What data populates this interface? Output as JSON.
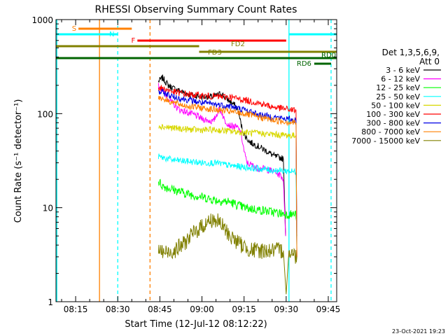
{
  "chart_data": {
    "type": "line",
    "title": "RHESSI Observing Summary Count Rates",
    "xlabel": "Start Time (12-Jul-12 08:12:22)",
    "ylabel": "Count Rate (s⁻¹ detector⁻¹)",
    "y_scale": "log",
    "ylim": [
      1,
      1000
    ],
    "xlim_minutes": [
      8.0,
      108.0
    ],
    "x_ticks": [
      {
        "label": "08:15",
        "t": 15
      },
      {
        "label": "08:30",
        "t": 30
      },
      {
        "label": "08:45",
        "t": 45
      },
      {
        "label": "09:00",
        "t": 60
      },
      {
        "label": "09:15",
        "t": 75
      },
      {
        "label": "09:30",
        "t": 90
      },
      {
        "label": "09:45",
        "t": 105
      }
    ],
    "y_ticks": [
      {
        "label": "1",
        "v": 1
      },
      {
        "label": "10",
        "v": 10
      },
      {
        "label": "100",
        "v": 100
      },
      {
        "label": "1000",
        "v": 1000
      }
    ],
    "legend": {
      "placement": "right",
      "header": [
        "Det 1,3,5,6,9,",
        "Att 0"
      ],
      "entries": [
        {
          "label": "3 - 6 keV",
          "color": "#000000"
        },
        {
          "label": "6 - 12 keV",
          "color": "#ff00ff"
        },
        {
          "label": "12 - 25 keV",
          "color": "#00ff00"
        },
        {
          "label": "25 - 50 keV",
          "color": "#00ffff"
        },
        {
          "label": "50 - 100 keV",
          "color": "#d8d800"
        },
        {
          "label": "100 - 300 keV",
          "color": "#ff0000"
        },
        {
          "label": "300 - 800 keV",
          "color": "#0000e6"
        },
        {
          "label": "800 - 7000 keV",
          "color": "#ff8000"
        },
        {
          "label": "7000 - 15000 keV",
          "color": "#808000"
        }
      ]
    },
    "series": [
      {
        "name": "3 - 6 keV",
        "color": "#000000",
        "points": [
          [
            44.5,
            220
          ],
          [
            46,
            240
          ],
          [
            48,
            200
          ],
          [
            50,
            185
          ],
          [
            52,
            175
          ],
          [
            54,
            165
          ],
          [
            56,
            158
          ],
          [
            58,
            155
          ],
          [
            60,
            150
          ],
          [
            62,
            152
          ],
          [
            64,
            150
          ],
          [
            66,
            160
          ],
          [
            67,
            165
          ],
          [
            68,
            150
          ],
          [
            70,
            135
          ],
          [
            72,
            120
          ],
          [
            73,
            105
          ],
          [
            74,
            75
          ],
          [
            75,
            60
          ],
          [
            77,
            50
          ],
          [
            80,
            45
          ],
          [
            83,
            40
          ],
          [
            86,
            35
          ],
          [
            88,
            34
          ],
          [
            89,
            33
          ],
          [
            89.8,
            5
          ]
        ]
      },
      {
        "name": "6 - 12 keV",
        "color": "#ff00ff",
        "points": [
          [
            44.5,
            200
          ],
          [
            46,
            175
          ],
          [
            48,
            145
          ],
          [
            50,
            125
          ],
          [
            52,
            110
          ],
          [
            54,
            105
          ],
          [
            56,
            100
          ],
          [
            58,
            95
          ],
          [
            60,
            88
          ],
          [
            62,
            85
          ],
          [
            64,
            82
          ],
          [
            65,
            95
          ],
          [
            66,
            110
          ],
          [
            67,
            105
          ],
          [
            68,
            85
          ],
          [
            70,
            75
          ],
          [
            72,
            72
          ],
          [
            73,
            70
          ],
          [
            74,
            60
          ],
          [
            75,
            40
          ],
          [
            76,
            30
          ],
          [
            78,
            28
          ],
          [
            80,
            26
          ],
          [
            82,
            26
          ],
          [
            84,
            25
          ],
          [
            86,
            24
          ],
          [
            87,
            23
          ],
          [
            88,
            22
          ],
          [
            89,
            20
          ],
          [
            89.8,
            5
          ]
        ]
      },
      {
        "name": "12 - 25 keV",
        "color": "#00ff00",
        "points": [
          [
            44.5,
            19
          ],
          [
            46,
            17
          ],
          [
            50,
            15.5
          ],
          [
            55,
            14
          ],
          [
            60,
            13
          ],
          [
            65,
            12
          ],
          [
            70,
            11.5
          ],
          [
            75,
            10
          ],
          [
            80,
            9.5
          ],
          [
            85,
            9
          ],
          [
            90,
            8.5
          ],
          [
            92,
            8.5
          ],
          [
            93.5,
            8.5
          ],
          [
            93.8,
            5
          ]
        ]
      },
      {
        "name": "25 - 50 keV",
        "color": "#00ffff",
        "points": [
          [
            44.5,
            35
          ],
          [
            46,
            34
          ],
          [
            50,
            32
          ],
          [
            55,
            31
          ],
          [
            60,
            30
          ],
          [
            65,
            30
          ],
          [
            70,
            28
          ],
          [
            75,
            27
          ],
          [
            80,
            26
          ],
          [
            85,
            25
          ],
          [
            90,
            24.5
          ],
          [
            93.5,
            24
          ],
          [
            93.8,
            3
          ]
        ]
      },
      {
        "name": "50 - 100 keV",
        "color": "#d8d800",
        "points": [
          [
            44.5,
            75
          ],
          [
            46,
            73
          ],
          [
            50,
            70
          ],
          [
            55,
            68
          ],
          [
            60,
            67
          ],
          [
            65,
            67
          ],
          [
            70,
            65
          ],
          [
            75,
            63
          ],
          [
            80,
            62
          ],
          [
            85,
            60
          ],
          [
            90,
            59
          ],
          [
            93.5,
            58
          ],
          [
            93.8,
            3
          ]
        ]
      },
      {
        "name": "100 - 300 keV",
        "color": "#ff0000",
        "points": [
          [
            44.5,
            190
          ],
          [
            46,
            185
          ],
          [
            50,
            170
          ],
          [
            55,
            160
          ],
          [
            60,
            155
          ],
          [
            65,
            152
          ],
          [
            70,
            150
          ],
          [
            75,
            140
          ],
          [
            80,
            130
          ],
          [
            85,
            118
          ],
          [
            90,
            112
          ],
          [
            93.5,
            108
          ],
          [
            93.8,
            3
          ]
        ]
      },
      {
        "name": "300 - 800 keV",
        "color": "#0000e6",
        "points": [
          [
            44.5,
            170
          ],
          [
            46,
            168
          ],
          [
            50,
            150
          ],
          [
            55,
            140
          ],
          [
            60,
            130
          ],
          [
            65,
            125
          ],
          [
            70,
            120
          ],
          [
            75,
            110
          ],
          [
            80,
            98
          ],
          [
            85,
            92
          ],
          [
            90,
            88
          ],
          [
            93.5,
            85
          ],
          [
            93.8,
            3
          ]
        ]
      },
      {
        "name": "800 - 7000 keV",
        "color": "#ff8000",
        "points": [
          [
            44.5,
            150
          ],
          [
            46,
            145
          ],
          [
            50,
            130
          ],
          [
            55,
            120
          ],
          [
            60,
            115
          ],
          [
            65,
            110
          ],
          [
            70,
            105
          ],
          [
            75,
            100
          ],
          [
            80,
            92
          ],
          [
            85,
            86
          ],
          [
            90,
            82
          ],
          [
            93.5,
            80
          ],
          [
            93.8,
            3
          ]
        ]
      },
      {
        "name": "7000 - 15000 keV",
        "color": "#808000",
        "points": [
          [
            44.5,
            3.5
          ],
          [
            47,
            3.3
          ],
          [
            50,
            3.5
          ],
          [
            53,
            4
          ],
          [
            56,
            5
          ],
          [
            59,
            6
          ],
          [
            62,
            7
          ],
          [
            64,
            7.5
          ],
          [
            66,
            7
          ],
          [
            68,
            6
          ],
          [
            70,
            5
          ],
          [
            72,
            4.5
          ],
          [
            74,
            4
          ],
          [
            78,
            3.5
          ],
          [
            82,
            3.5
          ],
          [
            86,
            3.5
          ],
          [
            89,
            3.5
          ],
          [
            90,
            1.2
          ],
          [
            91,
            3.5
          ],
          [
            93.8,
            3
          ]
        ]
      }
    ],
    "status_bars": [
      {
        "label": "S",
        "color": "#ff8000",
        "t_start": 16,
        "t_end": 35,
        "row": 0
      },
      {
        "label": "N",
        "color": "#00ffff",
        "t_start": 8,
        "t_end": 30,
        "row": 1
      },
      {
        "label": "N",
        "color": "#00ffff",
        "t_start": 91,
        "t_end": 108,
        "row": 1,
        "hide_label": true
      },
      {
        "label": "F",
        "color": "#ff0000",
        "t_start": 37,
        "t_end": 90,
        "row": 2
      },
      {
        "label": "FD2",
        "color": "#808000",
        "t_start": 8,
        "t_end": 59,
        "row": 3
      },
      {
        "label": "FD3",
        "color": "#808000",
        "t_start": 59,
        "t_end": 108,
        "row": 4
      },
      {
        "label": "RD0",
        "color": "#006400",
        "t_start": 8,
        "t_end": 108,
        "row": 5
      },
      {
        "label": "RD6",
        "color": "#006400",
        "t_start": 100,
        "t_end": 106,
        "row": 6
      }
    ],
    "vertical_markers": [
      {
        "t": 8.3,
        "color": "#00ffff",
        "style": "solid"
      },
      {
        "t": 23.5,
        "color": "#ff8000",
        "style": "solid"
      },
      {
        "t": 30,
        "color": "#00ffff",
        "style": "dashed"
      },
      {
        "t": 41.5,
        "color": "#ff8000",
        "style": "dashed"
      },
      {
        "t": 91,
        "color": "#00ffff",
        "style": "solid"
      },
      {
        "t": 106,
        "color": "#00ffff",
        "style": "dashed"
      }
    ],
    "footer_timestamp": "23-Oct-2021 19:23"
  }
}
